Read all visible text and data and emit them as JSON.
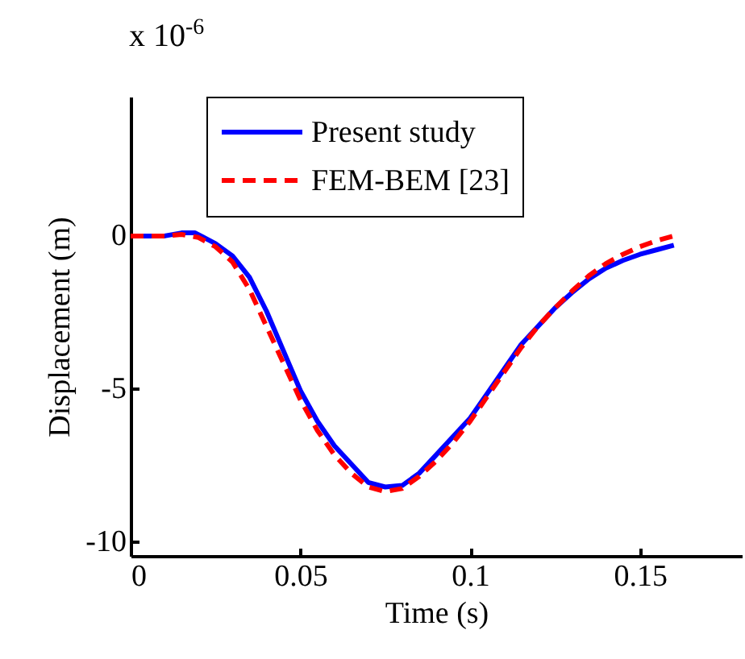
{
  "chart_data": {
    "type": "line",
    "xlabel": "Time (s)",
    "ylabel": "Displacement (m)",
    "annotations": [
      "x 10$^{-6}$"
    ],
    "xlim": [
      0,
      0.18
    ],
    "ylim": [
      -10.5,
      4.5
    ],
    "xticks": [
      0,
      0.05,
      0.1,
      0.15
    ],
    "yticks": [
      -10,
      -5,
      0
    ],
    "grid": false,
    "legend": "top",
    "marker": "none",
    "series": [
      {
        "name": "Present study",
        "color": "#0000ff",
        "line_style": "solid",
        "x": [
          0,
          0.01,
          0.015,
          0.019,
          0.025,
          0.03,
          0.035,
          0.04,
          0.045,
          0.05,
          0.055,
          0.06,
          0.065,
          0.07,
          0.075,
          0.08,
          0.085,
          0.09,
          0.095,
          0.1,
          0.105,
          0.11,
          0.115,
          0.12,
          0.125,
          0.13,
          0.135,
          0.14,
          0.145,
          0.15,
          0.155,
          0.16
        ],
        "values": [
          -0.05,
          -0.05,
          0.05,
          0.05,
          -0.3,
          -0.7,
          -1.4,
          -2.5,
          -3.8,
          -5.1,
          -6.1,
          -6.9,
          -7.5,
          -8.1,
          -8.25,
          -8.2,
          -7.8,
          -7.2,
          -6.6,
          -6.0,
          -5.2,
          -4.4,
          -3.6,
          -3.0,
          -2.4,
          -1.9,
          -1.45,
          -1.1,
          -0.85,
          -0.65,
          -0.5,
          -0.35
        ]
      },
      {
        "name": "FEM-BEM [23]",
        "color": "#ff0000",
        "line_style": "dashed",
        "x": [
          0,
          0.01,
          0.015,
          0.02,
          0.025,
          0.03,
          0.035,
          0.04,
          0.045,
          0.05,
          0.055,
          0.06,
          0.065,
          0.07,
          0.075,
          0.08,
          0.085,
          0.09,
          0.095,
          0.1,
          0.105,
          0.11,
          0.115,
          0.12,
          0.125,
          0.13,
          0.135,
          0.14,
          0.145,
          0.15,
          0.155,
          0.16
        ],
        "values": [
          -0.05,
          -0.05,
          0.0,
          -0.1,
          -0.4,
          -0.9,
          -1.8,
          -3.0,
          -4.2,
          -5.4,
          -6.4,
          -7.2,
          -7.8,
          -8.25,
          -8.4,
          -8.3,
          -7.9,
          -7.4,
          -6.8,
          -6.1,
          -5.3,
          -4.5,
          -3.7,
          -3.0,
          -2.4,
          -1.85,
          -1.35,
          -0.95,
          -0.65,
          -0.4,
          -0.2,
          -0.05
        ]
      }
    ]
  }
}
